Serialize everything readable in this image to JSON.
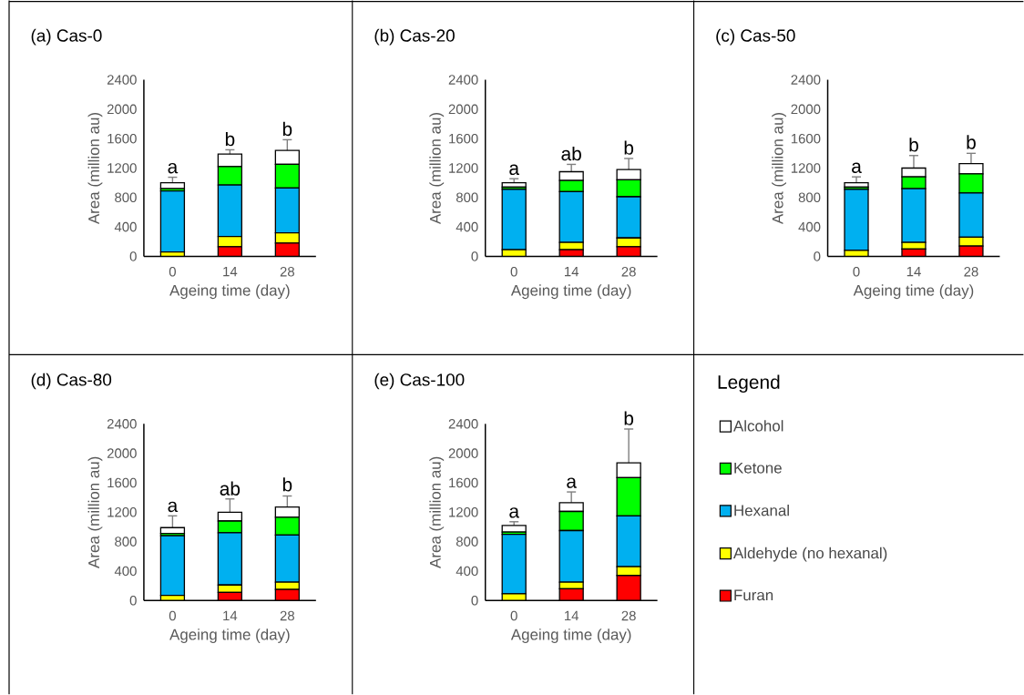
{
  "chart_data": [
    {
      "type": "bar",
      "title": "(a) Cas-0",
      "xlabel": "Ageing time (day)",
      "ylabel": "Area (million au)",
      "categories": [
        "0",
        "14",
        "28"
      ],
      "stacked": true,
      "ylim": [
        0,
        2400
      ],
      "yticks": [
        0,
        400,
        800,
        1200,
        1600,
        2000,
        2400
      ],
      "series": [
        {
          "color": "#ff0000",
          "values": [
            0,
            130,
            180
          ]
        },
        {
          "color": "#ffff00",
          "values": [
            60,
            140,
            140
          ]
        },
        {
          "color": "#00b0f0",
          "values": [
            830,
            700,
            610
          ]
        },
        {
          "color": "#00ff00",
          "values": [
            30,
            250,
            320
          ]
        },
        {
          "color": "#ffffff",
          "values": [
            80,
            170,
            190
          ],
          "errors": [
            75,
            58,
            145
          ]
        }
      ],
      "annotations": [
        {
          "text": "a",
          "x": "0",
          "y": 1075
        },
        {
          "text": "b",
          "x": "14",
          "y": 1448
        },
        {
          "text": "b",
          "x": "28",
          "y": 1585
        }
      ]
    },
    {
      "type": "bar",
      "title": "(b) Cas-20",
      "xlabel": "Ageing time (day)",
      "ylabel": "Area (million au)",
      "categories": [
        "0",
        "14",
        "28"
      ],
      "stacked": true,
      "ylim": [
        0,
        2400
      ],
      "yticks": [
        0,
        400,
        800,
        1200,
        1600,
        2000,
        2400
      ],
      "series": [
        {
          "color": "#ff0000",
          "values": [
            0,
            90,
            130
          ]
        },
        {
          "color": "#ffff00",
          "values": [
            90,
            100,
            120
          ]
        },
        {
          "color": "#00b0f0",
          "values": [
            820,
            690,
            560
          ]
        },
        {
          "color": "#00ff00",
          "values": [
            30,
            150,
            230
          ]
        },
        {
          "color": "#ffffff",
          "values": [
            60,
            120,
            140
          ],
          "errors": [
            55,
            100,
            150
          ]
        }
      ],
      "annotations": [
        {
          "text": "a",
          "x": "0",
          "y": 1055
        },
        {
          "text": "ab",
          "x": "14",
          "y": 1250
        },
        {
          "text": "b",
          "x": "28",
          "y": 1330
        }
      ]
    },
    {
      "type": "bar",
      "title": "(c) Cas-50",
      "xlabel": "Ageing time (day)",
      "ylabel": "Area (million au)",
      "categories": [
        "0",
        "14",
        "28"
      ],
      "stacked": true,
      "ylim": [
        0,
        2400
      ],
      "yticks": [
        0,
        400,
        800,
        1200,
        1600,
        2000,
        2400
      ],
      "series": [
        {
          "color": "#ff0000",
          "values": [
            0,
            100,
            140
          ]
        },
        {
          "color": "#ffff00",
          "values": [
            80,
            90,
            120
          ]
        },
        {
          "color": "#00b0f0",
          "values": [
            830,
            730,
            600
          ]
        },
        {
          "color": "#00ff00",
          "values": [
            30,
            160,
            260
          ]
        },
        {
          "color": "#ffffff",
          "values": [
            60,
            120,
            140
          ],
          "errors": [
            80,
            170,
            140
          ]
        }
      ],
      "annotations": [
        {
          "text": "a",
          "x": "0",
          "y": 1080
        },
        {
          "text": "b",
          "x": "14",
          "y": 1370
        },
        {
          "text": "b",
          "x": "28",
          "y": 1405
        }
      ]
    },
    {
      "type": "bar",
      "title": "(d) Cas-80",
      "xlabel": "Ageing time (day)",
      "ylabel": "Area (million au)",
      "categories": [
        "0",
        "14",
        "28"
      ],
      "stacked": true,
      "ylim": [
        0,
        2400
      ],
      "yticks": [
        0,
        400,
        800,
        1200,
        1600,
        2000,
        2400
      ],
      "series": [
        {
          "color": "#ff0000",
          "values": [
            0,
            110,
            150
          ]
        },
        {
          "color": "#ffff00",
          "values": [
            70,
            100,
            100
          ]
        },
        {
          "color": "#00b0f0",
          "values": [
            810,
            710,
            640
          ]
        },
        {
          "color": "#00ff00",
          "values": [
            30,
            160,
            240
          ]
        },
        {
          "color": "#ffffff",
          "values": [
            80,
            120,
            140
          ],
          "errors": [
            160,
            180,
            150
          ]
        }
      ],
      "annotations": [
        {
          "text": "a",
          "x": "0",
          "y": 1150
        },
        {
          "text": "ab",
          "x": "14",
          "y": 1375
        },
        {
          "text": "b",
          "x": "28",
          "y": 1430
        }
      ]
    },
    {
      "type": "bar",
      "title": "(e) Cas-100",
      "xlabel": "Ageing time (day)",
      "ylabel": "Area (million au)",
      "categories": [
        "0",
        "14",
        "28"
      ],
      "stacked": true,
      "ylim": [
        0,
        2400
      ],
      "yticks": [
        0,
        400,
        800,
        1200,
        1600,
        2000,
        2400
      ],
      "legend": "right",
      "legend_title": "Legend",
      "series": [
        {
          "name": "Furan",
          "color": "#ff0000",
          "values": [
            0,
            160,
            340
          ]
        },
        {
          "name": "Aldehyde (no hexanal)",
          "color": "#ffff00",
          "values": [
            90,
            90,
            120
          ]
        },
        {
          "name": "Hexanal",
          "color": "#00b0f0",
          "values": [
            810,
            700,
            690
          ]
        },
        {
          "name": "Ketone",
          "color": "#00ff00",
          "values": [
            30,
            260,
            520
          ]
        },
        {
          "name": "Alcohol",
          "color": "#ffffff",
          "values": [
            90,
            120,
            200
          ],
          "errors": [
            50,
            145,
            460
          ]
        }
      ],
      "annotations": [
        {
          "text": "a",
          "x": "0",
          "y": 1070
        },
        {
          "text": "a",
          "x": "14",
          "y": 1475
        },
        {
          "text": "b",
          "x": "28",
          "y": 2330
        }
      ]
    }
  ]
}
